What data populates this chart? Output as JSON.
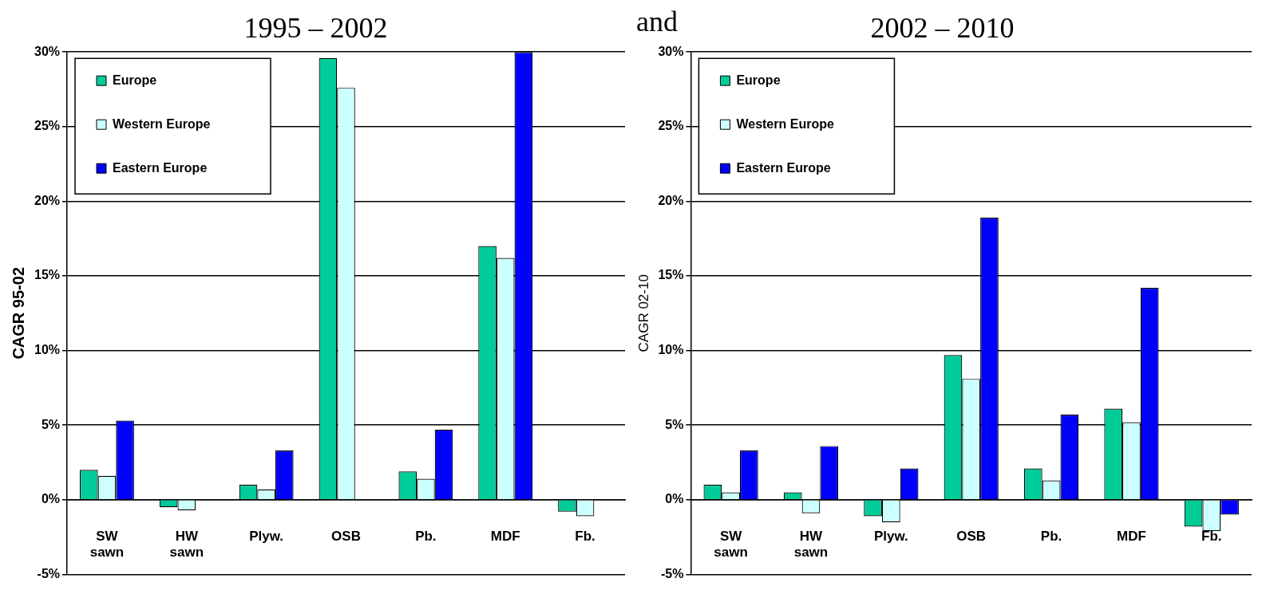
{
  "chart_data": [
    {
      "type": "bar",
      "title": "1995 – 2002",
      "ylabel": "CAGR 95-02",
      "categories": [
        "SW sawn",
        "HW sawn",
        "Plyw.",
        "OSB",
        "Pb.",
        "MDF",
        "Fb."
      ],
      "series": [
        {
          "name": "Europe",
          "color": "#00cc99",
          "values": [
            2.0,
            -0.5,
            1.0,
            29.6,
            1.9,
            17.0,
            -0.8
          ]
        },
        {
          "name": "Western Europe",
          "color": "#ccffff",
          "values": [
            1.6,
            -0.7,
            0.7,
            27.6,
            1.4,
            16.2,
            -1.1
          ]
        },
        {
          "name": "Eastern Europe",
          "color": "#0000ff",
          "values": [
            5.3,
            null,
            3.3,
            null,
            4.7,
            30,
            null
          ]
        }
      ],
      "ylim": [
        -5,
        30
      ],
      "yticks": [
        {
          "value": -5,
          "label": "-5%"
        },
        {
          "value": 0,
          "label": "0%"
        },
        {
          "value": 5,
          "label": "5%"
        },
        {
          "value": 10,
          "label": "10%"
        },
        {
          "value": 15,
          "label": "15%"
        },
        {
          "value": 20,
          "label": "20%"
        },
        {
          "value": 25,
          "label": "25%"
        },
        {
          "value": 30,
          "label": "30%"
        }
      ],
      "grid": "y",
      "legend": "top left"
    },
    {
      "type": "bar",
      "title": "2002 – 2010",
      "ylabel": "CAGR 02-10",
      "annotations": [
        "and"
      ],
      "categories": [
        "SW sawn",
        "HW sawn",
        "Plyw.",
        "OSB",
        "Pb.",
        "MDF",
        "Fb."
      ],
      "series": [
        {
          "name": "Europe",
          "color": "#00cc99",
          "values": [
            1.0,
            0.5,
            -1.1,
            9.7,
            2.1,
            6.1,
            -1.8
          ]
        },
        {
          "name": "Western Europe",
          "color": "#ccffff",
          "values": [
            0.5,
            -0.9,
            -1.5,
            8.1,
            1.3,
            5.2,
            -2.1
          ]
        },
        {
          "name": "Eastern Europe",
          "color": "#0000ff",
          "values": [
            3.3,
            3.6,
            2.1,
            18.9,
            5.7,
            14.2,
            -1.0
          ]
        }
      ],
      "ylim": [
        -5,
        30
      ],
      "yticks": [
        {
          "value": -5,
          "label": "-5%"
        },
        {
          "value": 0,
          "label": "0%"
        },
        {
          "value": 5,
          "label": "5%"
        },
        {
          "value": 10,
          "label": "10%"
        },
        {
          "value": 15,
          "label": "15%"
        },
        {
          "value": 20,
          "label": "20%"
        },
        {
          "value": 25,
          "label": "25%"
        },
        {
          "value": 30,
          "label": "30%"
        }
      ],
      "grid": "y",
      "legend": "top left"
    }
  ]
}
